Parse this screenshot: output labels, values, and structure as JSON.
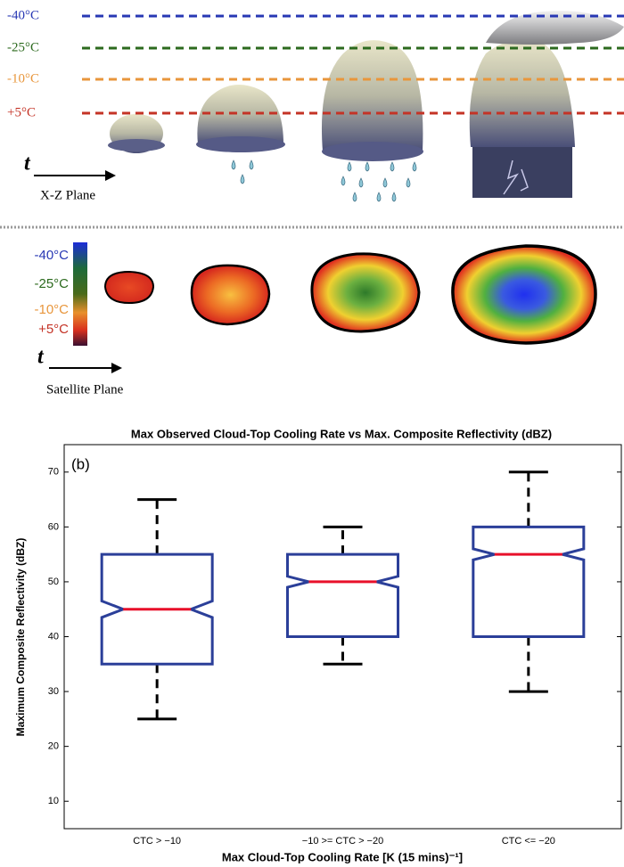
{
  "illustration": {
    "temperature_lines": [
      {
        "label": "-40°C",
        "color": "#2838b4"
      },
      {
        "label": "-25°C",
        "color": "#2c6a1e"
      },
      {
        "label": "-10°C",
        "color": "#e8963c"
      },
      {
        "label": "+5°C",
        "color": "#c43326"
      }
    ],
    "time_symbol": "t",
    "xz_label": "X-Z Plane",
    "colorbar_labels": [
      {
        "label": "-40°C",
        "color": "#2838b4"
      },
      {
        "label": "-25°C",
        "color": "#2c6a1e"
      },
      {
        "label": "-10°C",
        "color": "#e8963c"
      },
      {
        "label": "+5°C",
        "color": "#c43326"
      }
    ],
    "satellite_label": "Satellite Plane"
  },
  "chart_data": {
    "type": "box",
    "title": "Max Observed Cloud-Top Cooling Rate vs Max. Composite Reflectivity (dBZ)",
    "panel_label": "(b)",
    "xlabel": "Max Cloud-Top Cooling Rate [K (15 mins)⁻¹]",
    "ylabel": "Maximum Composite Reflectivity (dBZ)",
    "categories": [
      "CTC > −10",
      "−10 >= CTC > −20",
      "CTC <= −20"
    ],
    "whislo": [
      25,
      35,
      30
    ],
    "q1": [
      35,
      40,
      40
    ],
    "notch_lo": [
      43.5,
      49,
      54
    ],
    "median": [
      45,
      50,
      55
    ],
    "notch_hi": [
      46.5,
      51,
      56
    ],
    "q3": [
      55,
      55,
      60
    ],
    "whishi": [
      65,
      60,
      70
    ],
    "box_color": "#2b3f99",
    "median_color": "#e8102a",
    "whisker_color": "#000000",
    "ylim": [
      5,
      75
    ],
    "yticks": [
      10,
      20,
      30,
      40,
      50,
      60,
      70
    ]
  }
}
